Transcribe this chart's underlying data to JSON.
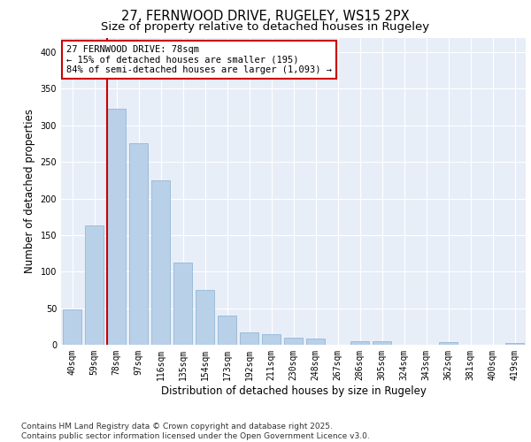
{
  "title1": "27, FERNWOOD DRIVE, RUGELEY, WS15 2PX",
  "title2": "Size of property relative to detached houses in Rugeley",
  "xlabel": "Distribution of detached houses by size in Rugeley",
  "ylabel": "Number of detached properties",
  "categories": [
    "40sqm",
    "59sqm",
    "78sqm",
    "97sqm",
    "116sqm",
    "135sqm",
    "154sqm",
    "173sqm",
    "192sqm",
    "211sqm",
    "230sqm",
    "248sqm",
    "267sqm",
    "286sqm",
    "305sqm",
    "324sqm",
    "343sqm",
    "362sqm",
    "381sqm",
    "400sqm",
    "419sqm"
  ],
  "values": [
    48,
    163,
    323,
    275,
    225,
    112,
    75,
    40,
    17,
    15,
    10,
    8,
    0,
    5,
    5,
    0,
    0,
    4,
    0,
    0,
    3
  ],
  "highlight_index": 2,
  "bar_color": "#b8d0e8",
  "bar_edge_color": "#8ab0d0",
  "highlight_line_color": "#cc0000",
  "annotation_text": "27 FERNWOOD DRIVE: 78sqm\n← 15% of detached houses are smaller (195)\n84% of semi-detached houses are larger (1,093) →",
  "annotation_box_color": "#ffffff",
  "annotation_border_color": "#cc0000",
  "ylim": [
    0,
    420
  ],
  "yticks": [
    0,
    50,
    100,
    150,
    200,
    250,
    300,
    350,
    400
  ],
  "background_color": "#e8eef8",
  "footer_text": "Contains HM Land Registry data © Crown copyright and database right 2025.\nContains public sector information licensed under the Open Government Licence v3.0.",
  "title1_fontsize": 10.5,
  "title2_fontsize": 9.5,
  "xlabel_fontsize": 8.5,
  "ylabel_fontsize": 8.5,
  "tick_fontsize": 7,
  "annotation_fontsize": 7.5,
  "footer_fontsize": 6.5
}
